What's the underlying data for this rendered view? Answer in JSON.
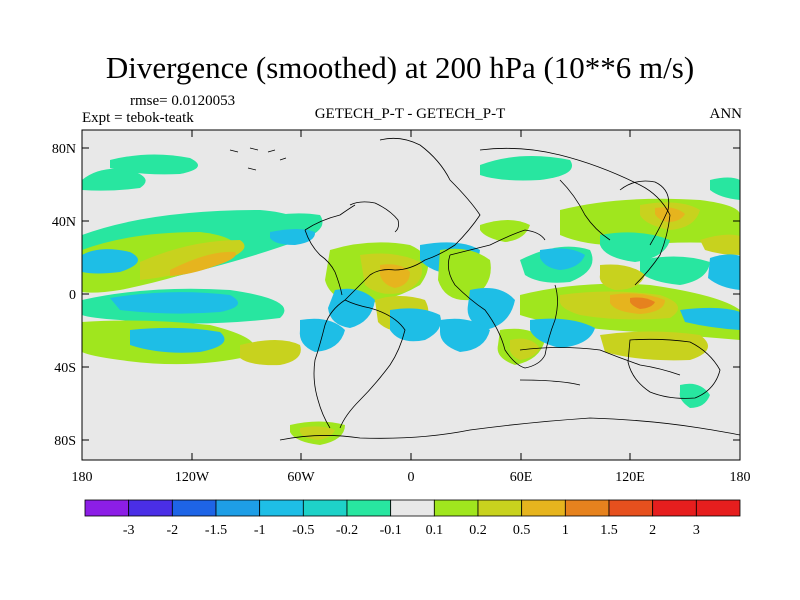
{
  "title": "Divergence (smoothed) at 200 hPa (10**6 m/s)",
  "rmse_text": "rmse= 0.0120053",
  "expt_text": "Expt = tebok-teatk",
  "center_text": "GETECH_P-T - GETECH_P-T",
  "right_text": "ANN",
  "lat_ticks": [
    "80N",
    "40N",
    "0",
    "40S",
    "80S"
  ],
  "lon_ticks": [
    "180",
    "120W",
    "60W",
    "0",
    "60E",
    "120E",
    "180"
  ],
  "colorbar": {
    "labels": [
      "-3",
      "-2",
      "-1.5",
      "-1",
      "-0.5",
      "-0.2",
      "-0.1",
      "0.1",
      "0.2",
      "0.5",
      "1",
      "1.5",
      "2",
      "3"
    ],
    "colors": [
      "#8c1ee6",
      "#4a2ee6",
      "#1e64e6",
      "#1e9ee6",
      "#1ebee6",
      "#1ed2c8",
      "#28e6a0",
      "#e8e8e8",
      "#a0e61e",
      "#c8d21e",
      "#e6b41e",
      "#e6821e",
      "#e6501e",
      "#e61e1e",
      "#e61e1e"
    ]
  }
}
